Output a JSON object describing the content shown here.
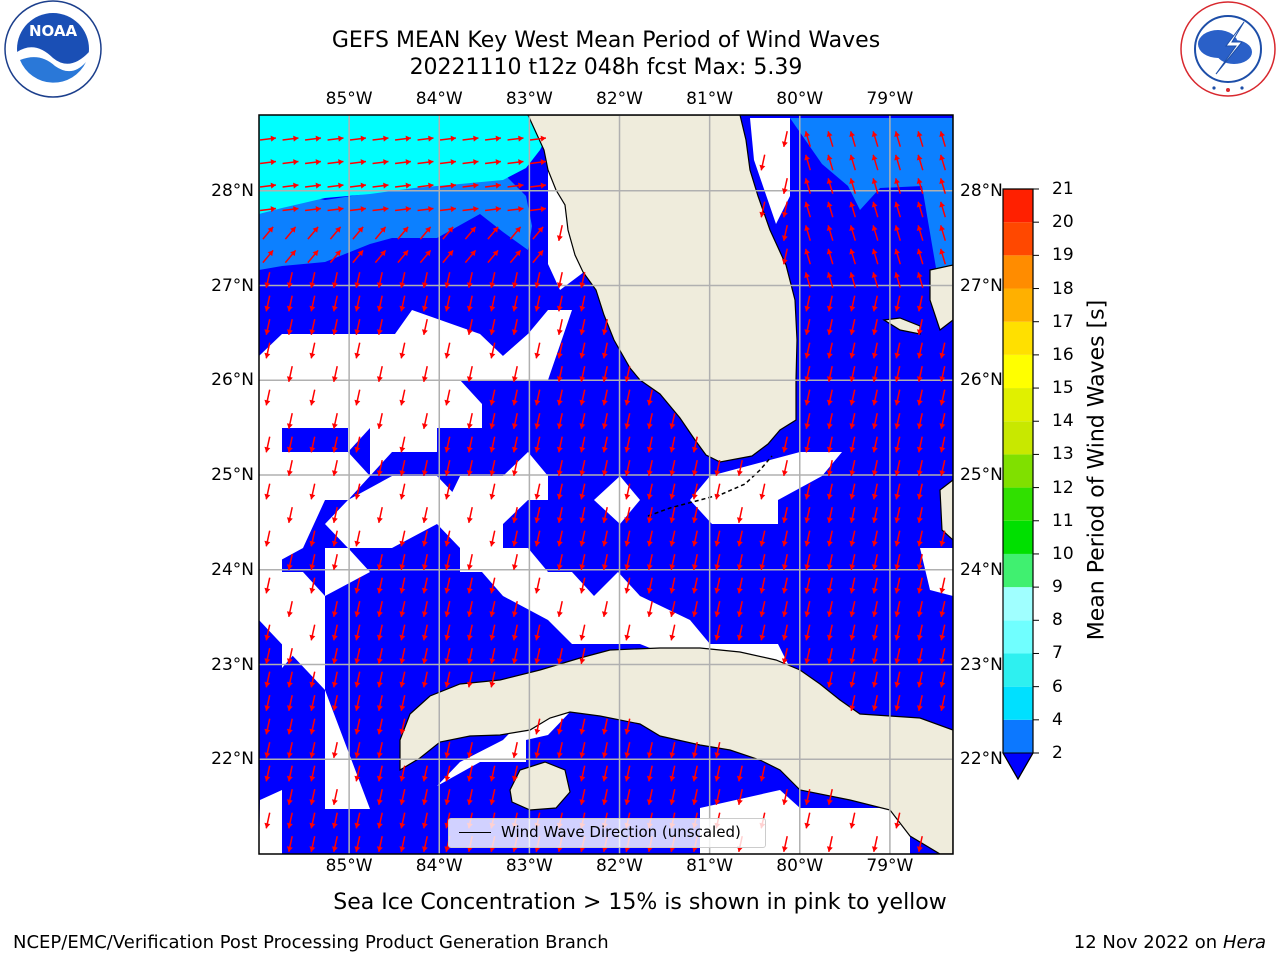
{
  "title_line1": "GEFS MEAN Key West Mean Period of Wind Waves",
  "title_line2": "20221110 t12z 048h fcst   Max: 5.39",
  "noaa_logo": {
    "center_text": "NOAA",
    "ring_text": "NATIONAL OCEANIC AND ATMOSPHERIC ADMINISTRATION · U.S. DEPARTMENT OF COMMERCE"
  },
  "nws_logo": {
    "ring_text": "NATIONAL WEATHER SERVICE"
  },
  "map": {
    "extent": {
      "lon": [
        -86.0,
        -78.3
      ],
      "lat": [
        21.0,
        28.8
      ]
    },
    "lon_ticks": [
      "85°W",
      "84°W",
      "83°W",
      "82°W",
      "81°W",
      "80°W",
      "79°W"
    ],
    "lat_ticks": [
      "28°N",
      "27°N",
      "26°N",
      "25°N",
      "24°N",
      "23°N",
      "22°N"
    ],
    "colors": {
      "land": "#efecdc",
      "ocean_2_4": "#0000ff",
      "ocean_4_6": "#0c80ff",
      "ocean_6_8": "#00ffff",
      "arrow": "#ff0000",
      "grid": "#b0b0b0"
    },
    "legend_label": "Wind Wave Direction (unscaled)"
  },
  "colorbar": {
    "title": "Mean Period of Wind Waves [s]",
    "levels": [
      "2",
      "4",
      "6",
      "7",
      "8",
      "9",
      "10",
      "11",
      "12",
      "13",
      "14",
      "15",
      "16",
      "17",
      "18",
      "19",
      "20",
      "21"
    ],
    "colors": [
      "#0c78ff",
      "#00e0ff",
      "#2ef0f0",
      "#70ffff",
      "#a0ffff",
      "#40f070",
      "#00e000",
      "#30e000",
      "#80e000",
      "#c8e800",
      "#e0f000",
      "#ffff00",
      "#ffe000",
      "#ffb000",
      "#ff8c00",
      "#ff4800",
      "#ff2000"
    ],
    "under_color": "#0000ff"
  },
  "caption": "Sea Ice Concentration > 15% is shown in pink to yellow",
  "footer_left": "NCEP/EMC/Verification Post Processing Product Generation Branch",
  "footer_right_prefix": "12 Nov 2022 on",
  "footer_right_host": "Hera"
}
